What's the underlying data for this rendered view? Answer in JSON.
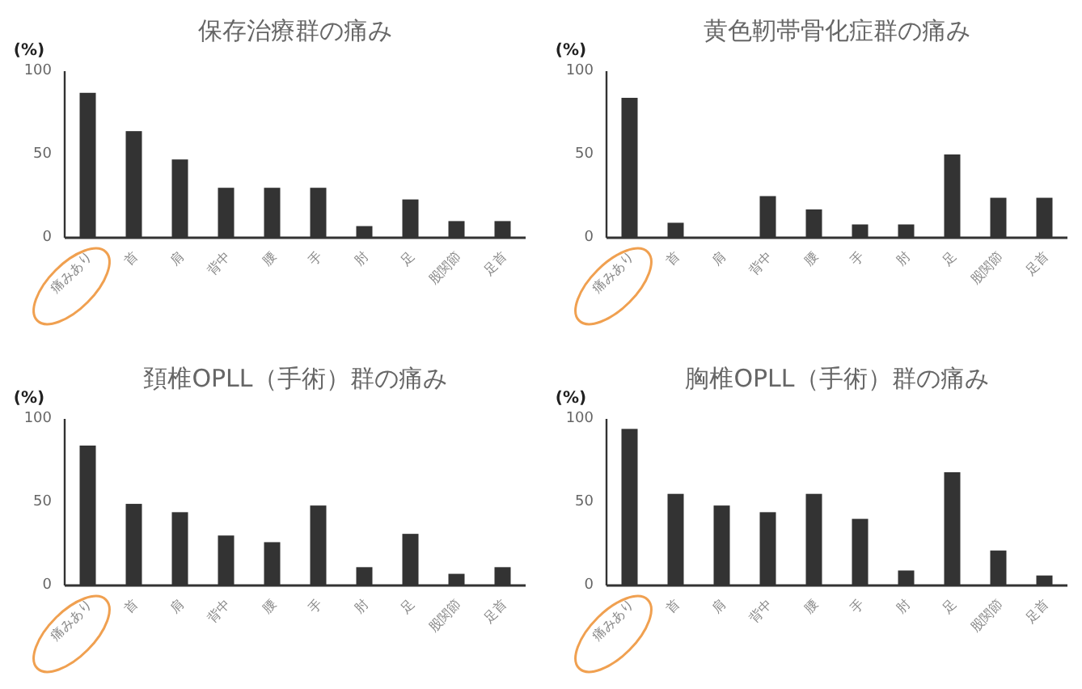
{
  "chart_data": [
    {
      "type": "bar",
      "title": "保存治療群の痛み",
      "ylabel": "(%)",
      "categories": [
        "痛みあり",
        "首",
        "肩",
        "背中",
        "腰",
        "手",
        "肘",
        "足",
        "股関節",
        "足首"
      ],
      "values": [
        87,
        64,
        47,
        30,
        30,
        30,
        7,
        23,
        10,
        10
      ],
      "color": "#333333",
      "ylim": [
        0,
        100
      ],
      "yticks": [
        0,
        50,
        100
      ]
    },
    {
      "type": "bar",
      "title": "黄色靭帯骨化症群の痛み",
      "ylabel": "(%)",
      "categories": [
        "痛みあり",
        "首",
        "肩",
        "背中",
        "腰",
        "手",
        "肘",
        "足",
        "股関節",
        "足首"
      ],
      "values": [
        84,
        9,
        0,
        25,
        17,
        8,
        8,
        50,
        24,
        24
      ],
      "color": "#333333",
      "ylim": [
        0,
        100
      ],
      "yticks": [
        0,
        50,
        100
      ]
    },
    {
      "type": "bar",
      "title": "頚椎OPLL（手術）群の痛み",
      "ylabel": "(%)",
      "categories": [
        "痛みあり",
        "首",
        "肩",
        "背中",
        "腰",
        "手",
        "肘",
        "足",
        "股関節",
        "足首"
      ],
      "values": [
        84,
        49,
        44,
        30,
        26,
        48,
        11,
        31,
        7,
        11
      ],
      "color": "#333333",
      "ylim": [
        0,
        100
      ],
      "yticks": [
        0,
        50,
        100
      ]
    },
    {
      "type": "bar",
      "title": "胸椎OPLL（手術）群の痛み",
      "ylabel": "(%)",
      "categories": [
        "痛みあり",
        "首",
        "肩",
        "背中",
        "腰",
        "手",
        "肘",
        "足",
        "股関節",
        "足首"
      ],
      "values": [
        94,
        55,
        48,
        44,
        55,
        40,
        9,
        68,
        21,
        6
      ],
      "color": "#333333",
      "ylim": [
        0,
        100
      ],
      "yticks": [
        0,
        50,
        100
      ]
    }
  ]
}
